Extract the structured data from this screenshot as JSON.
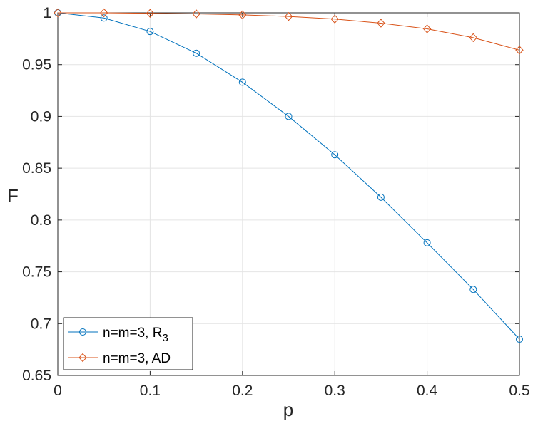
{
  "chart_data": {
    "type": "line",
    "xlabel": "p",
    "ylabel": "F",
    "xlim": [
      0,
      0.5
    ],
    "ylim": [
      0.65,
      1
    ],
    "grid": true,
    "legend_position": "bottom-left",
    "x_ticks": [
      "0",
      "0.1",
      "0.2",
      "0.3",
      "0.4",
      "0.5"
    ],
    "y_ticks": [
      "0.65",
      "0.7",
      "0.75",
      "0.8",
      "0.85",
      "0.9",
      "0.95",
      "1"
    ],
    "x": [
      0,
      0.05,
      0.1,
      0.15,
      0.2,
      0.25,
      0.3,
      0.35,
      0.4,
      0.45,
      0.5
    ],
    "series": [
      {
        "name": "n=m=3, R",
        "name_subscript": "3",
        "marker": "circle",
        "color": "#0072BD",
        "values": [
          1.0,
          0.995,
          0.982,
          0.961,
          0.933,
          0.9,
          0.863,
          0.822,
          0.778,
          0.733,
          0.685
        ]
      },
      {
        "name": "n=m=3, AD",
        "marker": "diamond",
        "color": "#D95319",
        "values": [
          1.0,
          1.0,
          0.9995,
          0.999,
          0.998,
          0.9965,
          0.994,
          0.99,
          0.9845,
          0.976,
          0.964
        ]
      }
    ]
  }
}
